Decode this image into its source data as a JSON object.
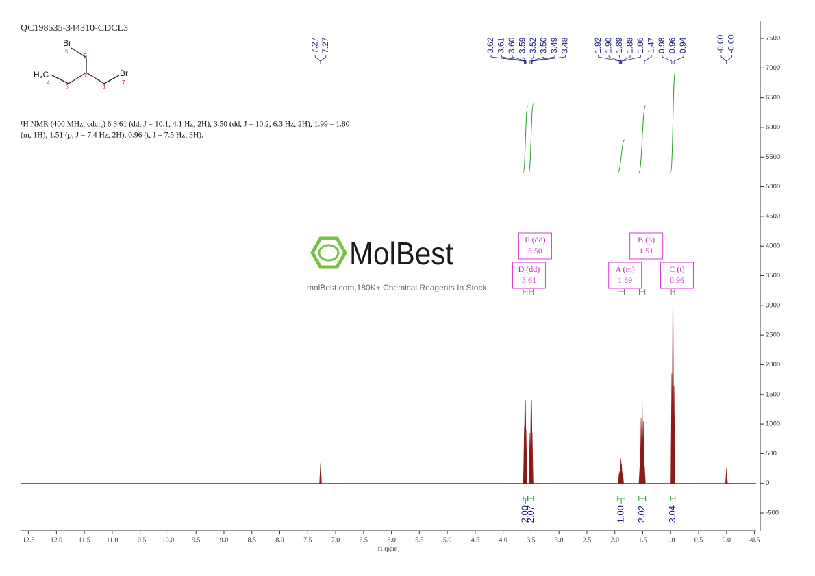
{
  "structure": {
    "atoms": [
      "Br",
      "H₃C",
      "Br"
    ],
    "numbers": [
      "6",
      "5",
      "2",
      "4",
      "3",
      "1",
      "7"
    ]
  },
  "description": [
    "¹H NMR (400 MHz, cdcl₃) δ 3.61 (dd, J = 10.1, 4.1 Hz, 2H), 3.50 (dd, J = 10.2, 6.3 Hz, 2H), 1.99 – 1.80",
    "(m, 1H), 1.51 (p, J = 7.4 Hz, 2H), 0.96 (t, J = 7.5 Hz, 3H)."
  ],
  "watermark": {
    "brand": "MolBest",
    "tagline": "molBest.com,180K+ Chemical Reagents In Stock."
  },
  "chart_data": {
    "type": "nmr",
    "title": "QC198535-344310-CDCL3",
    "xlabel": "f1 (ppm)",
    "xlim": [
      12.63,
      -0.53
    ],
    "xticks": [
      12.5,
      {
        "value": 12,
        "label": "12.0"
      },
      11.5,
      {
        "value": 11,
        "label": "11.0"
      },
      10.5,
      {
        "value": 10,
        "label": "10.0"
      },
      9.5,
      {
        "value": 9,
        "label": "9.0"
      },
      8.5,
      {
        "value": 8,
        "label": "8.0"
      },
      7.5,
      {
        "value": 7,
        "label": "7.0"
      },
      6.5,
      {
        "value": 6,
        "label": "6.0"
      },
      5.5,
      {
        "value": 5,
        "label": "5.0"
      },
      4.5,
      {
        "value": 4,
        "label": "4.0"
      },
      3.5,
      {
        "value": 3,
        "label": "3.0"
      },
      2.5,
      {
        "value": 2,
        "label": "2.0"
      },
      1.5,
      {
        "value": 1,
        "label": "1.0"
      },
      0.5,
      {
        "value": 0,
        "label": "0.0"
      },
      -0.5
    ],
    "ylim": [
      -800,
      7800
    ],
    "yticks": [
      -500,
      0,
      500,
      1000,
      1500,
      2000,
      2500,
      3000,
      3500,
      4000,
      4500,
      5000,
      5500,
      6000,
      6500,
      7000,
      7500
    ],
    "color": "#8b1a1a",
    "x": [
      7.27,
      3.62,
      3.61,
      3.6,
      3.59,
      3.52,
      3.5,
      3.49,
      3.48,
      1.92,
      1.9,
      1.89,
      1.88,
      1.86,
      1.55,
      1.53,
      1.51,
      1.49,
      1.47,
      0.98,
      0.96,
      0.94,
      0.0
    ],
    "values": [
      340,
      950,
      1450,
      1400,
      900,
      850,
      1450,
      1400,
      850,
      200,
      330,
      420,
      330,
      200,
      320,
      1100,
      1450,
      1050,
      300,
      1850,
      3550,
      1650,
      250
    ],
    "peak_labels": {
      "positions": [
        7.27,
        7.27,
        3.62,
        3.61,
        3.6,
        3.59,
        3.52,
        3.5,
        3.49,
        3.48,
        1.92,
        1.9,
        1.89,
        1.88,
        1.86,
        1.47,
        0.98,
        0.96,
        0.94,
        0.0,
        0.0
      ],
      "labels": [
        "7.27",
        "7.27",
        "3.62",
        "3.61",
        "3.60",
        "3.59",
        "3.52",
        "3.50",
        "3.49",
        "3.48",
        "1.92",
        "1.90",
        "1.89",
        "1.88",
        "1.86",
        "1.47",
        "0.98",
        "0.96",
        "0.94",
        "-0.00",
        "-0.00"
      ]
    },
    "multiplets": [
      {
        "label": "D (dd)",
        "shift": 3.61,
        "range": [
          3.64,
          3.57
        ]
      },
      {
        "label": "E (dd)",
        "shift": 3.5,
        "shift_label": "3.50",
        "range": [
          3.53,
          3.46
        ]
      },
      {
        "label": "A (m)",
        "shift": 1.89,
        "range": [
          1.94,
          1.83
        ]
      },
      {
        "label": "B (p)",
        "shift": 1.51,
        "range": [
          1.56,
          1.46
        ]
      },
      {
        "label": "C (t)",
        "shift": 0.96,
        "range": [
          0.99,
          0.93
        ]
      }
    ],
    "integrals": [
      {
        "value": 2.0,
        "label": "2.00",
        "range": [
          3.64,
          3.56
        ]
      },
      {
        "value": 2.07,
        "range": [
          3.54,
          3.46
        ]
      },
      {
        "value": 1.0,
        "label": "1.00",
        "range": [
          1.95,
          1.82
        ]
      },
      {
        "value": 2.02,
        "range": [
          1.57,
          1.45
        ]
      },
      {
        "value": 3.04,
        "range": [
          1.0,
          0.92
        ]
      }
    ]
  }
}
